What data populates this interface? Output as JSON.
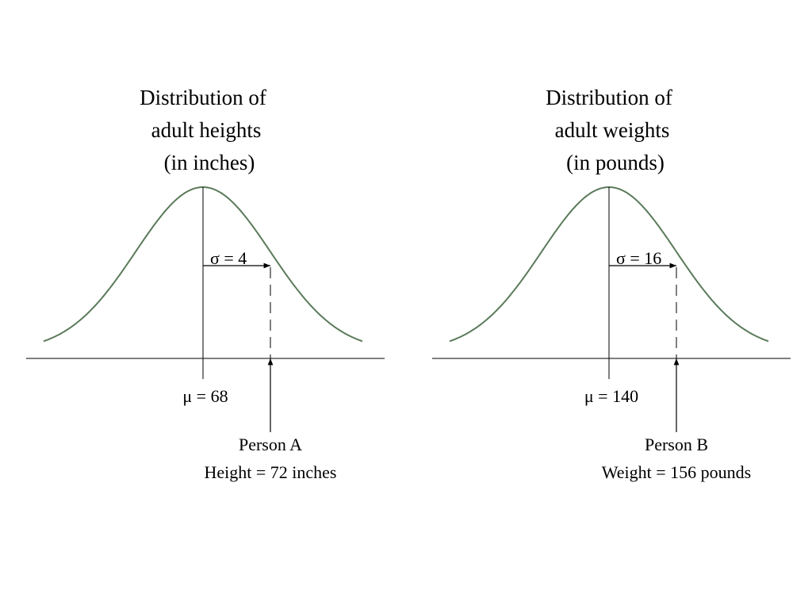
{
  "panels": [
    {
      "title": [
        "Distribution of",
        "adult heights",
        "(in inches)"
      ],
      "sigma": "σ = 4",
      "mu": "μ = 68",
      "person": [
        "Person A",
        "Height = 72 inches"
      ]
    },
    {
      "title": [
        "Distribution of",
        "adult weights",
        "(in pounds)"
      ],
      "sigma": "σ = 16",
      "mu": "μ = 140",
      "person": [
        "Person B",
        "Weight = 156 pounds"
      ]
    }
  ]
}
